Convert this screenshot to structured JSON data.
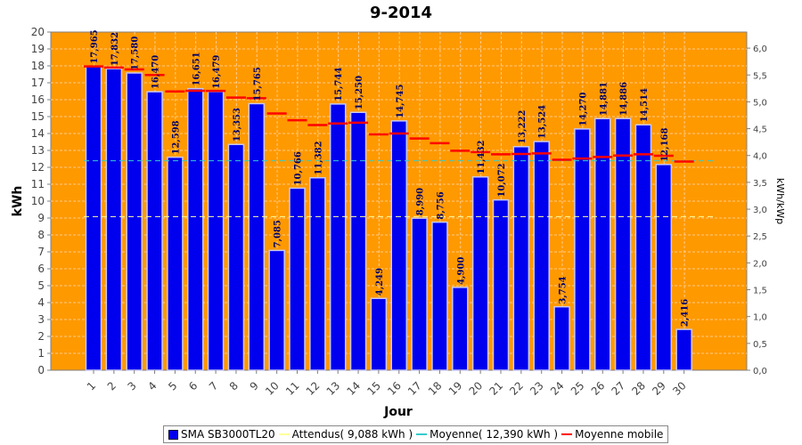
{
  "chart_data": {
    "type": "bar",
    "title": "9-2014",
    "xlabel": "Jour",
    "ylabel": "kWh",
    "ylabel_right": "kWh/kWp",
    "ylim": [
      0,
      20
    ],
    "y2lim": [
      0,
      6.3
    ],
    "yticks": [
      "0",
      "1",
      "2",
      "3",
      "4",
      "5",
      "6",
      "7",
      "8",
      "9",
      "10",
      "11",
      "12",
      "13",
      "14",
      "15",
      "16",
      "17",
      "18",
      "19",
      "20"
    ],
    "y2ticks": [
      "0,0",
      "0,5",
      "1,0",
      "1,5",
      "2,0",
      "2,5",
      "3,0",
      "3,5",
      "4,0",
      "4,5",
      "5,0",
      "5,5",
      "6,0"
    ],
    "categories": [
      "1",
      "2",
      "3",
      "4",
      "5",
      "6",
      "7",
      "8",
      "9",
      "10",
      "11",
      "12",
      "13",
      "14",
      "15",
      "16",
      "17",
      "18",
      "19",
      "20",
      "21",
      "22",
      "23",
      "24",
      "25",
      "26",
      "27",
      "28",
      "29",
      "30"
    ],
    "series": [
      {
        "name": "SMA SB3000TL20",
        "type": "bar",
        "color": "#0000ee",
        "values": [
          17.965,
          17.832,
          17.58,
          16.47,
          12.598,
          16.651,
          16.479,
          13.353,
          15.765,
          7.085,
          10.766,
          11.382,
          15.744,
          15.25,
          4.249,
          14.745,
          8.99,
          8.756,
          4.9,
          11.432,
          10.072,
          13.222,
          13.524,
          3.754,
          14.27,
          14.881,
          14.886,
          14.514,
          12.168,
          2.416
        ],
        "labels": [
          "17,965",
          "17,832",
          "17,580",
          "16,470",
          "12,598",
          "16,651",
          "16,479",
          "13,353",
          "15,765",
          "7,085",
          "10,766",
          "11,382",
          "15,744",
          "15,250",
          "4,249",
          "14,745",
          "8,990",
          "8,756",
          "4,900",
          "11,432",
          "10,072",
          "13,222",
          "13,524",
          "3,754",
          "14,270",
          "14,881",
          "14,886",
          "14,514",
          "12,168",
          "2,416"
        ]
      },
      {
        "name": "Attendus( 9,088 kWh )",
        "type": "hline",
        "color": "#ffff99",
        "value": 9.088
      },
      {
        "name": "Moyenne( 12,390 kWh )",
        "type": "hline",
        "color": "#33cccc",
        "value": 12.39
      },
      {
        "name": "Moyenne mobile",
        "type": "step",
        "color": "#ff0000",
        "values": [
          17.965,
          17.899,
          17.792,
          17.462,
          16.489,
          16.526,
          16.519,
          16.123,
          16.083,
          15.183,
          14.781,
          14.498,
          14.594,
          14.64,
          13.947,
          14.0,
          13.705,
          13.43,
          12.981,
          12.903,
          12.768,
          12.789,
          12.822,
          12.445,
          12.52,
          12.611,
          12.698,
          12.772,
          12.681,
          12.339
        ]
      }
    ],
    "colors": {
      "plot_background": "#ff9900",
      "bar_fill": "#0000ee",
      "bar_highlight": "#c8c8f0",
      "grid": "#ffcc88",
      "label_text": "#000066"
    },
    "grid": true,
    "legend_position": "bottom"
  }
}
